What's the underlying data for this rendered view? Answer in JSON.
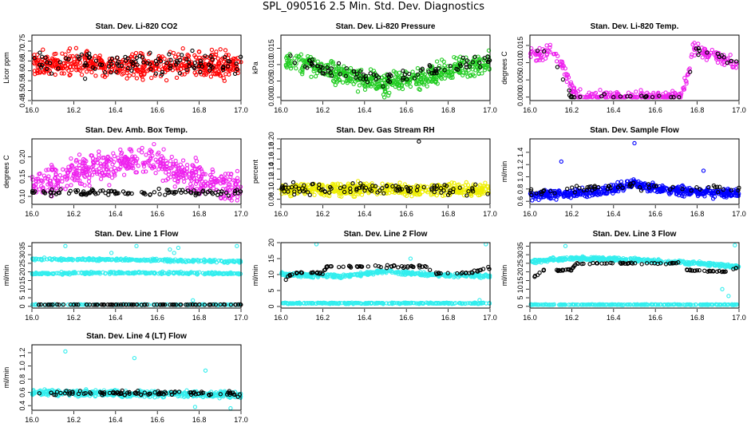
{
  "figure": {
    "title": "SPL_090516  2.5 Min. Std. Dev. Diagnostics"
  },
  "colors": {
    "black": "#000000",
    "red": "#ff0000",
    "green": "#22cc22",
    "magenta": "#ee22ee",
    "yellow": "#eeee00",
    "blue": "#0000ff",
    "cyan": "#33eeee"
  },
  "chart_data": [
    {
      "type": "scatter",
      "title": "Stan. Dev. Li-820 CO2",
      "ylabel": "Licor ppm",
      "xlim": [
        16.0,
        17.0
      ],
      "ylim": [
        0.45,
        0.78
      ],
      "xticks": [
        "16.0",
        "16.2",
        "16.4",
        "16.6",
        "16.8",
        "17.0"
      ],
      "yticks": [
        "0.45",
        "0.50",
        "0.55",
        "0.60",
        "0.65",
        "0.70",
        "0.75"
      ],
      "series": [
        {
          "color": "#ff0000",
          "count": 520,
          "x": [
            16.0,
            17.0
          ],
          "baseline": [
            [
              16.0,
              0.63
            ],
            [
              17.0,
              0.63
            ]
          ],
          "spread": 0.05,
          "min": 0.45,
          "max": 0.78
        },
        {
          "color": "#000000",
          "count": 110,
          "x": [
            16.0,
            17.0
          ],
          "baseline": [
            [
              16.0,
              0.64
            ],
            [
              17.0,
              0.64
            ]
          ],
          "spread": 0.05,
          "min": 0.55,
          "max": 0.76
        }
      ]
    },
    {
      "type": "scatter",
      "title": "Stan. Dev. Li-820 Pressure",
      "ylabel": "kPa",
      "xlim": [
        16.0,
        17.0
      ],
      "ylim": [
        -0.001,
        0.019
      ],
      "xticks": [
        "16.0",
        "16.2",
        "16.4",
        "16.6",
        "16.8",
        "17.0"
      ],
      "yticks": [
        "0.000",
        "0.005",
        "0.010",
        "0.015"
      ],
      "series": [
        {
          "color": "#22cc22",
          "count": 520,
          "x": [
            16.02,
            17.0
          ],
          "baseline": [
            [
              16.02,
              0.011
            ],
            [
              16.2,
              0.009
            ],
            [
              16.4,
              0.005
            ],
            [
              16.5,
              0.004
            ],
            [
              16.6,
              0.005
            ],
            [
              16.8,
              0.008
            ],
            [
              17.0,
              0.011
            ]
          ],
          "spread": 0.0025,
          "min": 0.0,
          "max": 0.019
        },
        {
          "color": "#000000",
          "count": 90,
          "x": [
            16.02,
            17.0
          ],
          "baseline": [
            [
              16.02,
              0.011
            ],
            [
              16.2,
              0.009
            ],
            [
              16.4,
              0.006
            ],
            [
              16.5,
              0.005
            ],
            [
              16.6,
              0.006
            ],
            [
              16.8,
              0.009
            ],
            [
              17.0,
              0.012
            ]
          ],
          "spread": 0.002,
          "min": 0.0,
          "max": 0.016
        }
      ]
    },
    {
      "type": "scatter",
      "title": "Stan. Dev. Li-820 Temp.",
      "ylabel": "degrees C",
      "xlim": [
        16.0,
        17.0
      ],
      "ylim": [
        -0.001,
        0.018
      ],
      "xticks": [
        "16.0",
        "16.2",
        "16.4",
        "16.6",
        "16.8",
        "17.0"
      ],
      "yticks": [
        "0.000",
        "0.005",
        "0.010",
        "0.015"
      ],
      "series": [
        {
          "color": "#ee22ee",
          "count": 320,
          "x": [
            16.0,
            17.0
          ],
          "baseline": [
            [
              16.0,
              0.013
            ],
            [
              16.05,
              0.012
            ],
            [
              16.1,
              0.014
            ],
            [
              16.15,
              0.01
            ],
            [
              16.2,
              0.003
            ],
            [
              16.22,
              0.0
            ],
            [
              16.72,
              0.0
            ],
            [
              16.75,
              0.005
            ],
            [
              16.78,
              0.015
            ],
            [
              16.82,
              0.013
            ],
            [
              16.9,
              0.012
            ],
            [
              17.0,
              0.009
            ]
          ],
          "spread": 0.0015,
          "min": 0.0,
          "max": 0.018
        },
        {
          "color": "#000000",
          "count": 40,
          "x": [
            16.0,
            17.0
          ],
          "baseline": [
            [
              16.0,
              0.013
            ],
            [
              16.1,
              0.013
            ],
            [
              16.2,
              0.0
            ],
            [
              16.75,
              0.0
            ],
            [
              16.78,
              0.014
            ],
            [
              16.9,
              0.012
            ],
            [
              17.0,
              0.009
            ]
          ],
          "spread": 0.001,
          "min": 0.0,
          "max": 0.016
        }
      ]
    },
    {
      "type": "scatter",
      "title": "Stan. Dev. Amb. Box Temp.",
      "ylabel": "degrees C",
      "xlim": [
        16.0,
        17.0
      ],
      "ylim": [
        0.08,
        0.245
      ],
      "xticks": [
        "16.0",
        "16.2",
        "16.4",
        "16.6",
        "16.8",
        "17.0"
      ],
      "yticks": [
        "0.10",
        "0.15",
        "0.20"
      ],
      "series": [
        {
          "color": "#ee22ee",
          "count": 520,
          "x": [
            16.0,
            17.0
          ],
          "baseline": [
            [
              16.0,
              0.13
            ],
            [
              16.2,
              0.16
            ],
            [
              16.4,
              0.18
            ],
            [
              16.55,
              0.19
            ],
            [
              16.7,
              0.16
            ],
            [
              16.85,
              0.14
            ],
            [
              17.0,
              0.12
            ]
          ],
          "spread": 0.03,
          "min": 0.09,
          "max": 0.24
        },
        {
          "color": "#000000",
          "count": 110,
          "x": [
            16.0,
            17.0
          ],
          "baseline": [
            [
              16.0,
              0.11
            ],
            [
              17.0,
              0.11
            ]
          ],
          "spread": 0.006,
          "min": 0.09,
          "max": 0.13
        }
      ]
    },
    {
      "type": "scatter",
      "title": "Stan. Dev. Gas Stream RH",
      "ylabel": "percent",
      "xlim": [
        16.0,
        17.0
      ],
      "ylim": [
        0.07,
        0.2
      ],
      "xticks": [
        "16.0",
        "16.2",
        "16.4",
        "16.6",
        "16.8",
        "17.0"
      ],
      "yticks": [
        "0.08",
        "0.10",
        "0.12",
        "0.14",
        "0.16",
        "0.18",
        "0.20"
      ],
      "series": [
        {
          "color": "#eeee00",
          "count": 520,
          "x": [
            16.0,
            17.0
          ],
          "baseline": [
            [
              16.0,
              0.1
            ],
            [
              17.0,
              0.1
            ]
          ],
          "spread": 0.01,
          "min": 0.08,
          "max": 0.125
        },
        {
          "color": "#000000",
          "count": 100,
          "x": [
            16.0,
            17.0
          ],
          "baseline": [
            [
              16.0,
              0.1
            ],
            [
              17.0,
              0.1
            ]
          ],
          "spread": 0.01,
          "min": 0.08,
          "max": 0.125,
          "outliers": [
            [
              16.66,
              0.195
            ]
          ]
        }
      ]
    },
    {
      "type": "scatter",
      "title": "Stan. Dev. Sample Flow",
      "ylabel": "ml/min",
      "xlim": [
        16.0,
        17.0
      ],
      "ylim": [
        0.55,
        1.62
      ],
      "xticks": [
        "16.0",
        "16.2",
        "16.4",
        "16.6",
        "16.8",
        "17.0"
      ],
      "yticks": [
        "0.6",
        "0.8",
        "1.0",
        "1.2",
        "1.4"
      ],
      "series": [
        {
          "color": "#0000ff",
          "count": 520,
          "x": [
            16.0,
            17.0
          ],
          "baseline": [
            [
              16.0,
              0.7
            ],
            [
              16.2,
              0.72
            ],
            [
              16.4,
              0.8
            ],
            [
              16.5,
              0.9
            ],
            [
              16.6,
              0.8
            ],
            [
              16.8,
              0.75
            ],
            [
              17.0,
              0.72
            ]
          ],
          "spread": 0.06,
          "min": 0.55,
          "max": 1.1,
          "outliers": [
            [
              16.15,
              1.25
            ],
            [
              16.5,
              1.55
            ],
            [
              16.83,
              1.1
            ]
          ]
        },
        {
          "color": "#000000",
          "count": 60,
          "x": [
            16.0,
            17.0
          ],
          "baseline": [
            [
              16.0,
              0.75
            ],
            [
              16.5,
              0.85
            ],
            [
              17.0,
              0.8
            ]
          ],
          "spread": 0.05,
          "min": 0.6,
          "max": 1.0
        }
      ]
    },
    {
      "type": "scatter",
      "title": "Stan. Dev. Line 1 Flow",
      "ylabel": "ml/min",
      "xlim": [
        16.0,
        17.0
      ],
      "ylim": [
        -1,
        37
      ],
      "xticks": [
        "16.0",
        "16.2",
        "16.4",
        "16.6",
        "16.8",
        "17.0"
      ],
      "yticks": [
        "0",
        "5",
        "10",
        "15",
        "20",
        "25",
        "30",
        "35"
      ],
      "series": [
        {
          "color": "#33eeee",
          "count": 260,
          "x": [
            16.0,
            17.0
          ],
          "baseline": [
            [
              16.0,
              27.5
            ],
            [
              16.5,
              27
            ],
            [
              17.0,
              26
            ]
          ],
          "spread": 0.6,
          "min": 20,
          "max": 36,
          "outliers": [
            [
              16.16,
              35
            ],
            [
              16.5,
              35
            ],
            [
              16.66,
              33
            ],
            [
              16.68,
              31
            ],
            [
              16.7,
              34
            ],
            [
              16.98,
              35
            ],
            [
              16.38,
              31
            ]
          ]
        },
        {
          "color": "#33eeee",
          "count": 260,
          "x": [
            16.0,
            17.0
          ],
          "baseline": [
            [
              16.0,
              19
            ],
            [
              16.5,
              19.5
            ],
            [
              17.0,
              19
            ]
          ],
          "spread": 0.5,
          "min": 15,
          "max": 24
        },
        {
          "color": "#33eeee",
          "count": 120,
          "x": [
            16.0,
            17.0
          ],
          "baseline": [
            [
              16.0,
              1
            ],
            [
              17.0,
              1
            ]
          ],
          "spread": 0.15,
          "min": 0,
          "max": 4,
          "outliers": [
            [
              16.77,
              3.5
            ]
          ]
        },
        {
          "color": "#000000",
          "count": 95,
          "x": [
            16.02,
            17.0
          ],
          "baseline": [
            [
              16.0,
              1
            ],
            [
              17.0,
              1
            ]
          ],
          "spread": 0.1,
          "min": 0.5,
          "max": 1.5
        }
      ]
    },
    {
      "type": "scatter",
      "title": "Stan. Dev. Line 2 Flow",
      "ylabel": "ml/min",
      "xlim": [
        16.0,
        17.0
      ],
      "ylim": [
        -0.5,
        20
      ],
      "xticks": [
        "16.0",
        "16.2",
        "16.4",
        "16.6",
        "16.8",
        "17.0"
      ],
      "yticks": [
        "0",
        "5",
        "10",
        "15",
        "20"
      ],
      "series": [
        {
          "color": "#33eeee",
          "count": 380,
          "x": [
            16.0,
            17.0
          ],
          "baseline": [
            [
              16.0,
              10
            ],
            [
              16.3,
              9.5
            ],
            [
              16.5,
              11
            ],
            [
              16.7,
              10
            ],
            [
              17.0,
              9.5
            ]
          ],
          "spread": 0.5,
          "min": 7,
          "max": 14,
          "outliers": [
            [
              16.17,
              19.5
            ],
            [
              16.62,
              15
            ],
            [
              16.98,
              19.5
            ],
            [
              16.95,
              2
            ]
          ]
        },
        {
          "color": "#33eeee",
          "count": 260,
          "x": [
            16.0,
            17.0
          ],
          "baseline": [
            [
              16.0,
              1
            ],
            [
              17.0,
              1
            ]
          ],
          "spread": 0.15,
          "min": 0,
          "max": 3
        },
        {
          "color": "#000000",
          "count": 90,
          "x": [
            16.02,
            17.0
          ],
          "baseline": [
            [
              16.02,
              8.5
            ],
            [
              16.06,
              10.5
            ],
            [
              16.2,
              10.5
            ],
            [
              16.22,
              12.5
            ],
            [
              16.7,
              12.5
            ],
            [
              16.72,
              10.5
            ],
            [
              16.9,
              10.5
            ],
            [
              17.0,
              12
            ]
          ],
          "spread": 0.35,
          "min": 7,
          "max": 14
        }
      ]
    },
    {
      "type": "scatter",
      "title": "Stan. Dev. Line 3 Flow",
      "ylabel": "ml/min",
      "xlim": [
        16.0,
        17.0
      ],
      "ylim": [
        -1,
        37
      ],
      "xticks": [
        "16.0",
        "16.2",
        "16.4",
        "16.6",
        "16.8",
        "17.0"
      ],
      "yticks": [
        "0",
        "5",
        "10",
        "15",
        "20",
        "25",
        "30",
        "35"
      ],
      "series": [
        {
          "color": "#33eeee",
          "count": 420,
          "x": [
            16.0,
            17.0
          ],
          "baseline": [
            [
              16.0,
              26
            ],
            [
              16.2,
              28
            ],
            [
              16.5,
              27
            ],
            [
              16.8,
              25
            ],
            [
              17.0,
              23
            ]
          ],
          "spread": 0.8,
          "min": 18,
          "max": 35,
          "outliers": [
            [
              16.17,
              35
            ],
            [
              16.98,
              35.5
            ],
            [
              16.92,
              10
            ],
            [
              16.95,
              6
            ]
          ]
        },
        {
          "color": "#33eeee",
          "count": 260,
          "x": [
            16.0,
            17.0
          ],
          "baseline": [
            [
              16.0,
              1
            ],
            [
              17.0,
              1
            ]
          ],
          "spread": 0.15,
          "min": 0,
          "max": 3
        },
        {
          "color": "#000000",
          "count": 95,
          "x": [
            16.02,
            17.0
          ],
          "baseline": [
            [
              16.02,
              17
            ],
            [
              16.06,
              21
            ],
            [
              16.2,
              21
            ],
            [
              16.22,
              25
            ],
            [
              16.72,
              25
            ],
            [
              16.74,
              21
            ],
            [
              16.95,
              20
            ],
            [
              17.0,
              23
            ]
          ],
          "spread": 0.4,
          "min": 15,
          "max": 27
        }
      ]
    },
    {
      "type": "scatter",
      "title": "Stan. Dev. Line 4 (LT) Flow",
      "ylabel": "ml/min",
      "xlim": [
        16.0,
        17.0
      ],
      "ylim": [
        0.33,
        1.32
      ],
      "xticks": [
        "16.0",
        "16.2",
        "16.4",
        "16.6",
        "16.8",
        "17.0"
      ],
      "yticks": [
        "0.4",
        "0.6",
        "0.8",
        "1.0",
        "1.2"
      ],
      "series": [
        {
          "color": "#33eeee",
          "count": 520,
          "x": [
            16.0,
            17.0
          ],
          "baseline": [
            [
              16.0,
              0.6
            ],
            [
              17.0,
              0.56
            ]
          ],
          "spread": 0.035,
          "min": 0.42,
          "max": 0.75,
          "outliers": [
            [
              16.16,
              1.22
            ],
            [
              16.49,
              1.12
            ],
            [
              16.83,
              0.93
            ],
            [
              16.78,
              0.38
            ],
            [
              16.95,
              0.36
            ]
          ]
        },
        {
          "color": "#000000",
          "count": 100,
          "x": [
            16.02,
            17.0
          ],
          "baseline": [
            [
              16.0,
              0.6
            ],
            [
              17.0,
              0.58
            ]
          ],
          "spread": 0.03,
          "min": 0.5,
          "max": 0.7
        }
      ]
    }
  ]
}
